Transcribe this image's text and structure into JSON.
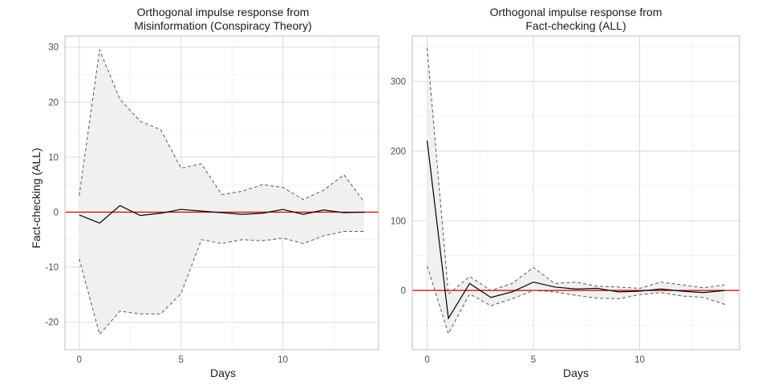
{
  "chart_data": [
    {
      "type": "line",
      "title_line1": "Orthogonal impulse response from",
      "title_line2": "Misinformation (Conspiracy Theory)",
      "xlabel": "Days",
      "ylabel": "Fact-checking (ALL)",
      "xlim": [
        -0.7,
        14.7
      ],
      "ylim": [
        -25,
        32
      ],
      "xticks": [
        0,
        5,
        10
      ],
      "xtick_labels": [
        "0",
        "5",
        "10"
      ],
      "yticks": [
        -20,
        -10,
        0,
        10,
        20,
        30
      ],
      "ytick_labels": [
        "-20",
        "-10",
        "0",
        "10",
        "20",
        "30"
      ],
      "x": [
        0,
        1,
        2,
        3,
        4,
        5,
        6,
        7,
        8,
        9,
        10,
        11,
        12,
        13,
        14
      ],
      "series": [
        {
          "name": "",
          "role": "response",
          "values": [
            -0.5,
            -2.0,
            1.2,
            -0.6,
            -0.2,
            0.5,
            0.2,
            -0.1,
            -0.4,
            -0.2,
            0.5,
            -0.4,
            0.4,
            -0.1,
            0.0
          ]
        },
        {
          "name": "",
          "role": "upper",
          "values": [
            3.0,
            29.5,
            20.5,
            16.5,
            15.0,
            8.0,
            8.8,
            3.2,
            3.8,
            5.0,
            4.5,
            2.3,
            4.0,
            6.8,
            1.8
          ]
        },
        {
          "name": "",
          "role": "lower",
          "values": [
            -8.5,
            -22.2,
            -18.0,
            -18.5,
            -18.5,
            -14.8,
            -5.0,
            -5.7,
            -5.0,
            -5.2,
            -4.7,
            -5.7,
            -4.3,
            -3.5,
            -3.5
          ]
        }
      ],
      "hline": 0,
      "grid": true,
      "colors": {
        "response": "#000000",
        "band": "#f0f0f0",
        "bounds": "#595959",
        "zero_line": "#cc0000"
      }
    },
    {
      "type": "line",
      "title_line1": "Orthogonal impulse response from",
      "title_line2": "Fact-checking (ALL)",
      "xlabel": "Days",
      "ylabel": "",
      "xlim": [
        -0.7,
        14.7
      ],
      "ylim": [
        -85,
        365
      ],
      "xticks": [
        0,
        5,
        10
      ],
      "xtick_labels": [
        "0",
        "5",
        "10"
      ],
      "yticks": [
        0,
        100,
        200,
        300
      ],
      "ytick_labels": [
        "0",
        "100",
        "200",
        "300"
      ],
      "x": [
        0,
        1,
        2,
        3,
        4,
        5,
        6,
        7,
        8,
        9,
        10,
        11,
        12,
        13,
        14
      ],
      "series": [
        {
          "name": "",
          "role": "response",
          "values": [
            215,
            -40,
            10,
            -10,
            -2,
            12,
            5,
            2,
            3,
            -2,
            -1,
            2,
            -1,
            -3,
            0
          ]
        },
        {
          "name": "",
          "role": "upper",
          "values": [
            348,
            -5,
            20,
            0,
            10,
            33,
            10,
            12,
            6,
            5,
            3,
            12,
            8,
            4,
            8
          ]
        },
        {
          "name": "",
          "role": "lower",
          "values": [
            35,
            -62,
            -5,
            -22,
            -12,
            0,
            -2,
            -7,
            -11,
            -12,
            -6,
            -3,
            -8,
            -10,
            -20
          ]
        }
      ],
      "hline": 0,
      "grid": true,
      "colors": {
        "response": "#000000",
        "band": "#f0f0f0",
        "bounds": "#595959",
        "zero_line": "#cc0000"
      }
    }
  ]
}
